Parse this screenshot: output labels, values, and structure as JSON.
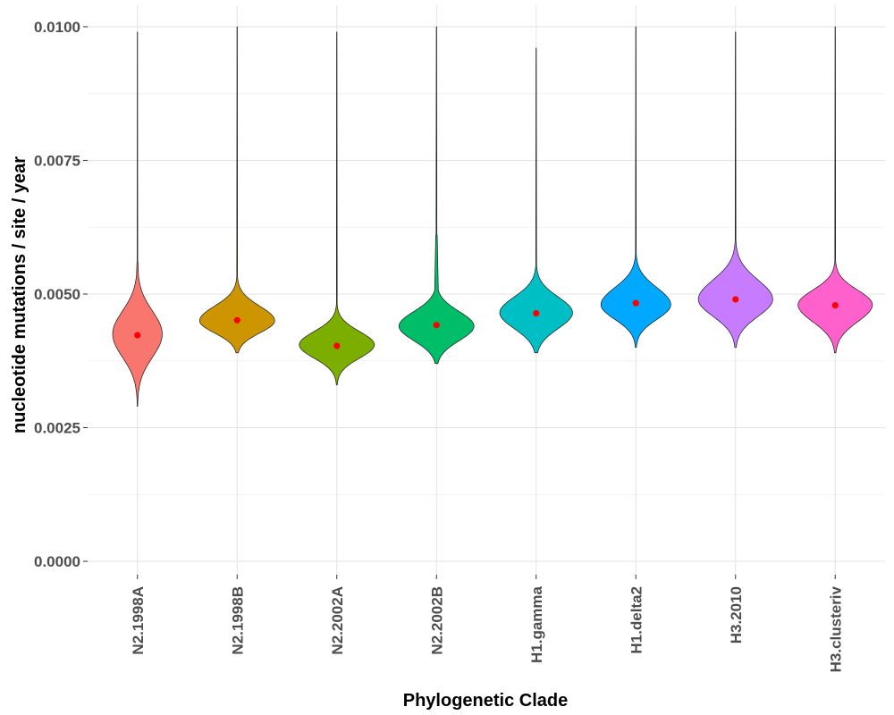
{
  "chart_data": {
    "type": "violin",
    "xlabel": "Phylogenetic Clade",
    "ylabel": "nucleotide mutations / site / year",
    "ylim": [
      -0.00025,
      0.0104
    ],
    "yticks": [
      "0.0000",
      "0.0025",
      "0.0050",
      "0.0075",
      "0.0100"
    ],
    "ytick_values": [
      0,
      0.0025,
      0.005,
      0.0075,
      0.01
    ],
    "grid": true,
    "legend": "none",
    "series": [
      {
        "category": "N2.1998A",
        "color": "#F8766D",
        "min": 0.0029,
        "q_low": 0.0033,
        "mode": 0.00425,
        "q_high": 0.0052,
        "tail_high": 0.0056,
        "max": 0.0099,
        "mean": 0.00423,
        "width": 0.66
      },
      {
        "category": "N2.1998B",
        "color": "#CD9600",
        "min": 0.0039,
        "q_low": 0.004,
        "mode": 0.0045,
        "q_high": 0.0051,
        "tail_high": 0.0052,
        "max": 0.01,
        "mean": 0.00451,
        "width": 1.0
      },
      {
        "category": "N2.2002A",
        "color": "#7CAE00",
        "min": 0.0033,
        "q_low": 0.0035,
        "mode": 0.00405,
        "q_high": 0.0046,
        "tail_high": 0.0047,
        "max": 0.0099,
        "mean": 0.00403,
        "width": 1.0
      },
      {
        "category": "N2.2002B",
        "color": "#00BE67",
        "min": 0.0037,
        "q_low": 0.0038,
        "mode": 0.0044,
        "q_high": 0.005,
        "tail_high": 0.0061,
        "max": 0.01,
        "mean": 0.00442,
        "width": 1.0
      },
      {
        "category": "H1.gamma",
        "color": "#00BFC4",
        "min": 0.0039,
        "q_low": 0.004,
        "mode": 0.00465,
        "q_high": 0.0053,
        "tail_high": 0.0054,
        "max": 0.0096,
        "mean": 0.00464,
        "width": 0.97
      },
      {
        "category": "H1.delta2",
        "color": "#00A9FF",
        "min": 0.004,
        "q_low": 0.0042,
        "mode": 0.0048,
        "q_high": 0.0055,
        "tail_high": 0.0056,
        "max": 0.01,
        "mean": 0.00483,
        "width": 0.93
      },
      {
        "category": "H3.2010",
        "color": "#C77CFF",
        "min": 0.004,
        "q_low": 0.0042,
        "mode": 0.0049,
        "q_high": 0.0057,
        "tail_high": 0.0058,
        "max": 0.0099,
        "mean": 0.0049,
        "width": 0.99
      },
      {
        "category": "H3.clusteriv",
        "color": "#FF61CC",
        "min": 0.0039,
        "q_low": 0.0041,
        "mode": 0.0048,
        "q_high": 0.0054,
        "tail_high": 0.0055,
        "max": 0.01,
        "mean": 0.00479,
        "width": 0.99
      }
    ],
    "mean_point_color": "#FF0000"
  }
}
